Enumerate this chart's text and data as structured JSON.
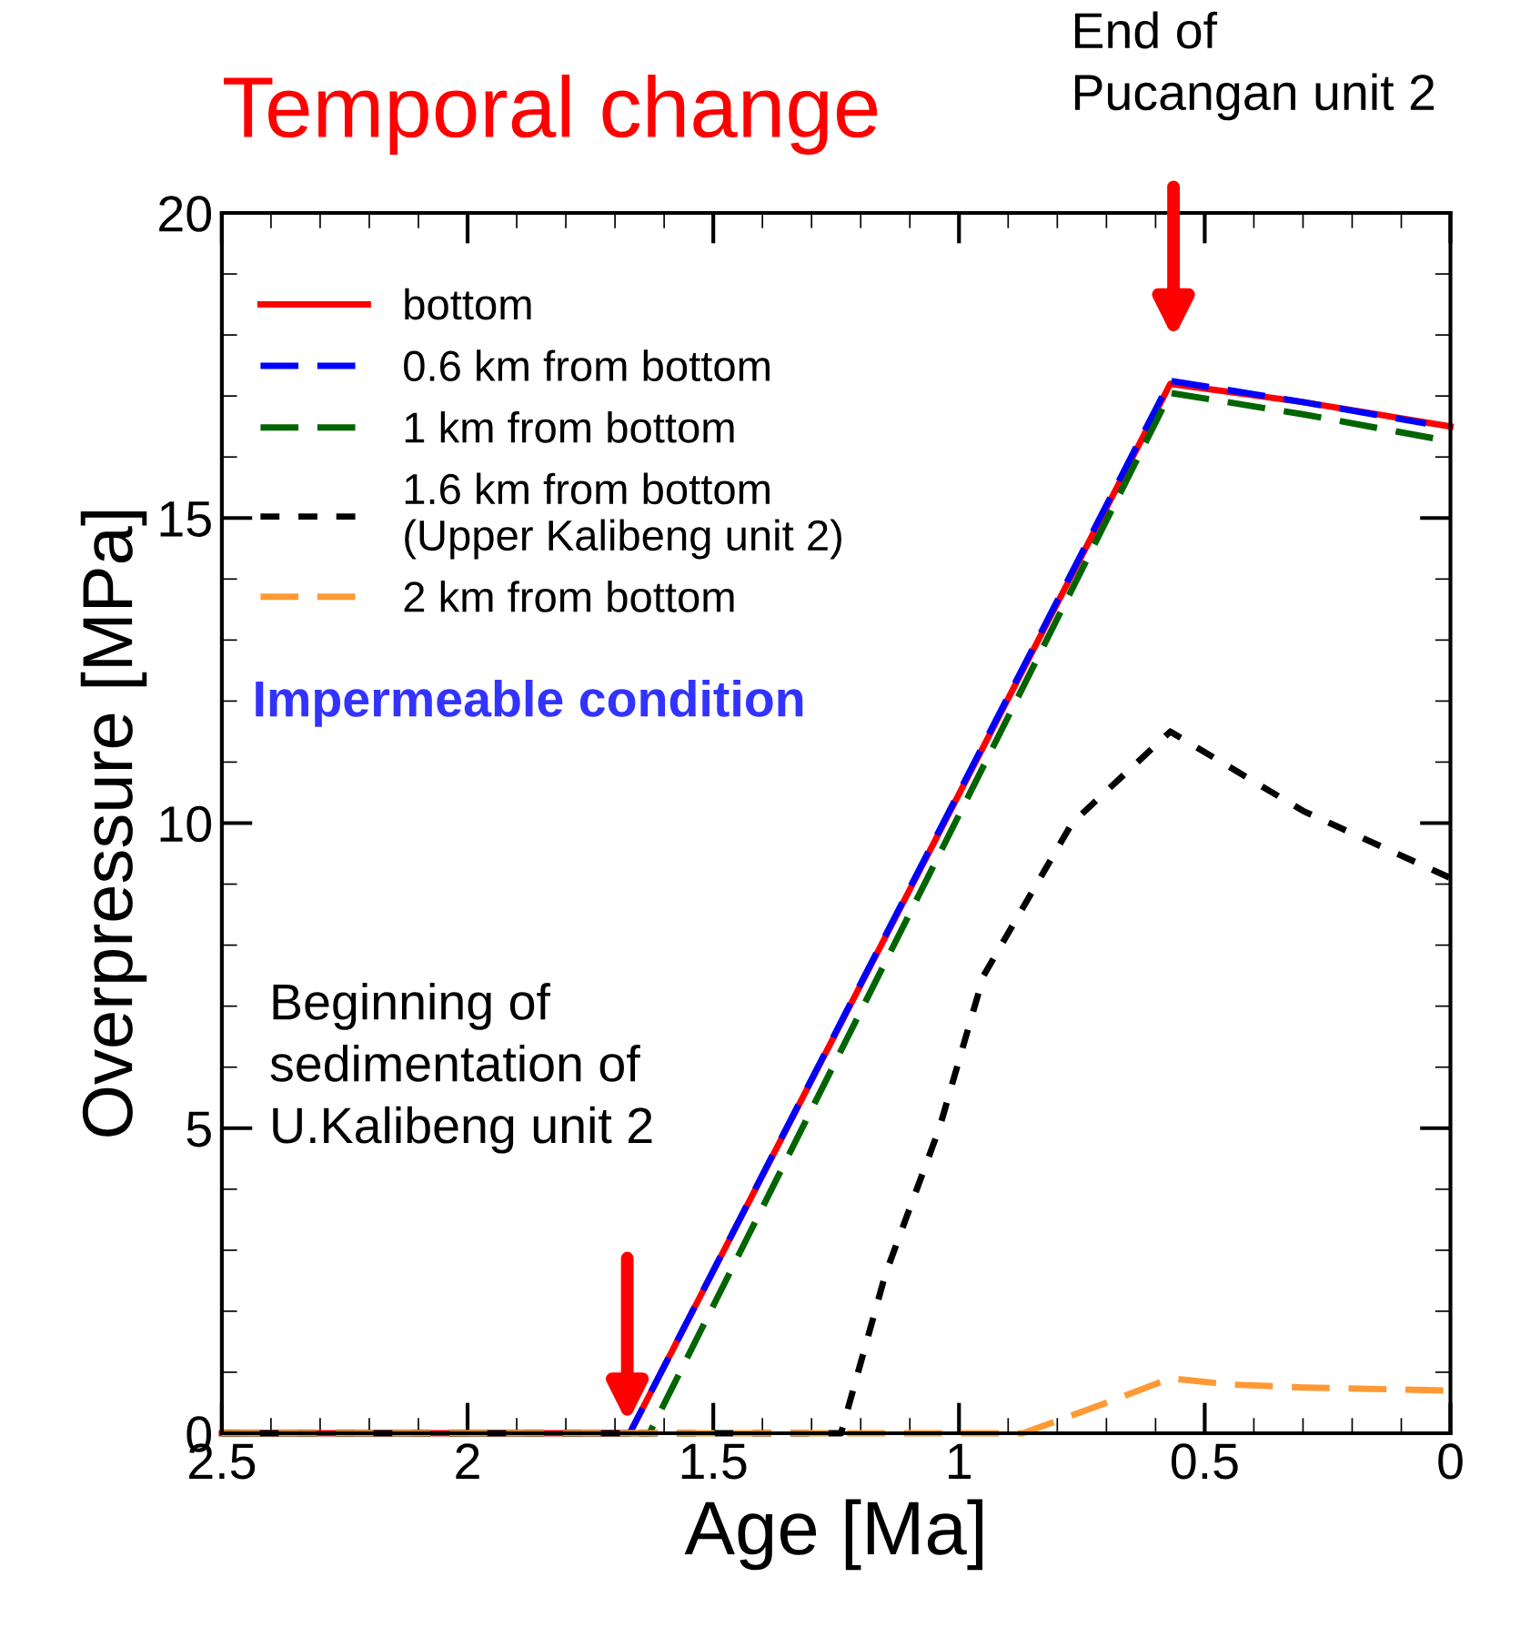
{
  "chart_data": {
    "type": "line",
    "title": "Temporal change",
    "xlabel": "Age [Ma]",
    "ylabel": "Overpressure [MPa]",
    "xlim": [
      2.5,
      0
    ],
    "ylim": [
      0,
      20
    ],
    "xticks": [
      2.5,
      2,
      1.5,
      1,
      0.5,
      0
    ],
    "yticks": [
      0,
      5,
      10,
      15,
      20
    ],
    "grid": false,
    "legend": "top left",
    "annotations": [
      "End of\nPucangan unit 2",
      "Beginning of\nsedimentation of\nU.Kalibeng unit 2",
      "Impermeable condition"
    ],
    "series": [
      {
        "name": "bottom",
        "color": "#ff0000",
        "line_style": "solid",
        "x": [
          2.5,
          1.67,
          0.57,
          0.3,
          0
        ],
        "values": [
          0,
          0,
          17.2,
          16.9,
          16.5
        ]
      },
      {
        "name": "0.6 km from bottom",
        "color": "#0000ff",
        "line_style": "dashed",
        "x": [
          2.5,
          1.67,
          0.57,
          0.3,
          0.05
        ],
        "values": [
          0,
          0,
          17.25,
          16.9,
          16.55
        ]
      },
      {
        "name": "1 km from bottom",
        "color": "#006400",
        "line_style": "dashed",
        "x": [
          2.5,
          1.63,
          0.57,
          0.3,
          0.03
        ],
        "values": [
          0,
          0,
          17.05,
          16.7,
          16.3
        ]
      },
      {
        "name": "1.6 km from bottom\n(Upper Kalibeng unit 2)",
        "color": "#000000",
        "line_style": "dotted",
        "x": [
          2.5,
          1.24,
          1.15,
          1.04,
          0.95,
          0.77,
          0.57,
          0.3,
          0
        ],
        "values": [
          0,
          0,
          2.6,
          5,
          7.5,
          10,
          11.5,
          10.2,
          9.1
        ]
      },
      {
        "name": "2 km from bottom",
        "color": "#ff9933",
        "line_style": "dashed",
        "x": [
          2.5,
          0.87,
          0.7,
          0.57,
          0.45,
          0.3,
          0
        ],
        "values": [
          0,
          0,
          0.5,
          0.9,
          0.8,
          0.75,
          0.7
        ]
      }
    ]
  }
}
